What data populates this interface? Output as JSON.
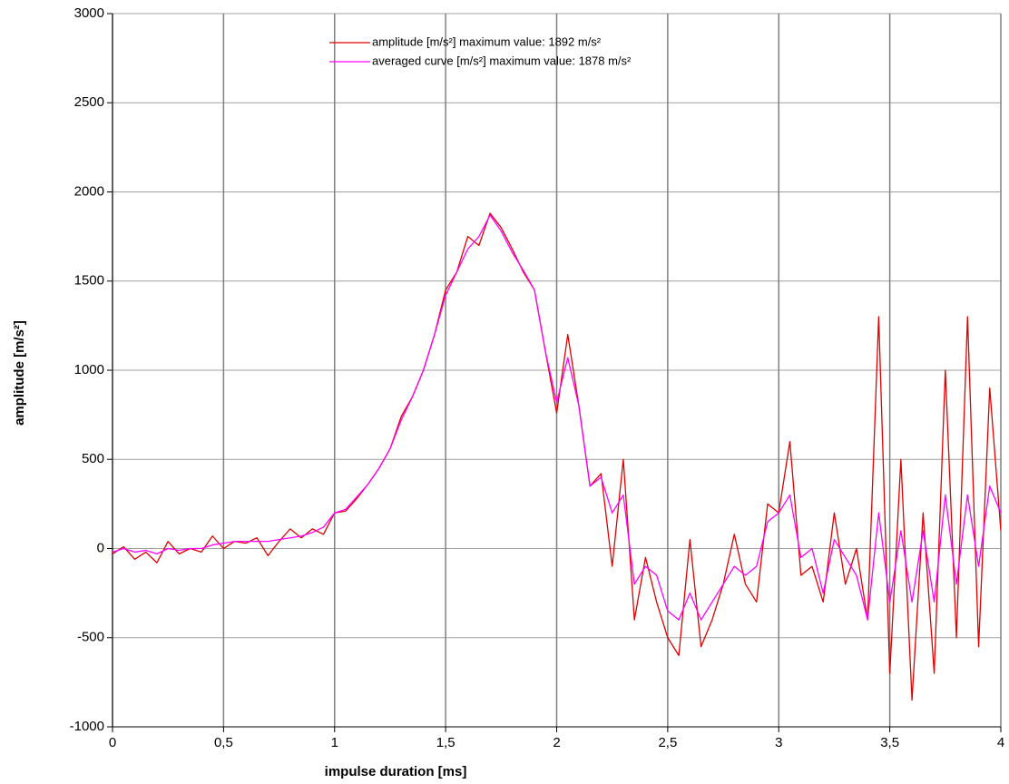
{
  "chart_data": {
    "type": "line",
    "x_label": "impulse duration [ms]",
    "y_label": "amplitude [m/s²]",
    "x": [
      0,
      0.05,
      0.1,
      0.15,
      0.2,
      0.25,
      0.3,
      0.35,
      0.4,
      0.45,
      0.5,
      0.55,
      0.6,
      0.65,
      0.7,
      0.75,
      0.8,
      0.85,
      0.9,
      0.95,
      1,
      1.05,
      1.1,
      1.15,
      1.2,
      1.25,
      1.3,
      1.35,
      1.4,
      1.45,
      1.5,
      1.55,
      1.6,
      1.65,
      1.7,
      1.75,
      1.8,
      1.85,
      1.9,
      1.95,
      2,
      2.05,
      2.1,
      2.15,
      2.2,
      2.25,
      2.3,
      2.35,
      2.4,
      2.45,
      2.5,
      2.55,
      2.6,
      2.65,
      2.7,
      2.75,
      2.8,
      2.85,
      2.9,
      2.95,
      3,
      3.05,
      3.1,
      3.15,
      3.2,
      3.25,
      3.3,
      3.35,
      3.4,
      3.45,
      3.5,
      3.55,
      3.6,
      3.65,
      3.7,
      3.75,
      3.8,
      3.85,
      3.9,
      3.95,
      4
    ],
    "series": [
      {
        "name": "amplitude [m/s²] maximum value: 1892 m/s²",
        "color": "#e00000",
        "values": [
          -30,
          10,
          -60,
          -20,
          -80,
          40,
          -30,
          0,
          -20,
          70,
          0,
          40,
          30,
          60,
          -40,
          40,
          110,
          60,
          110,
          80,
          200,
          210,
          280,
          360,
          450,
          560,
          740,
          850,
          1000,
          1200,
          1450,
          1550,
          1750,
          1700,
          1880,
          1800,
          1680,
          1550,
          1450,
          1100,
          760,
          1200,
          800,
          350,
          420,
          -100,
          500,
          -400,
          -50,
          -300,
          -500,
          -600,
          50,
          -550,
          -400,
          -200,
          80,
          -200,
          -300,
          250,
          200,
          600,
          -150,
          -100,
          -300,
          200,
          -200,
          0,
          -400,
          1300,
          -700,
          500,
          -850,
          200,
          -700,
          1000,
          -500,
          1300,
          -550,
          900,
          100
        ]
      },
      {
        "name": "averaged curve [m/s²] maximum value: 1878 m/s²",
        "color": "#ff00ff",
        "values": [
          -20,
          0,
          -20,
          -10,
          -30,
          0,
          -10,
          0,
          0,
          20,
          30,
          40,
          40,
          40,
          40,
          50,
          60,
          70,
          90,
          120,
          200,
          220,
          290,
          360,
          450,
          560,
          720,
          850,
          1000,
          1200,
          1420,
          1550,
          1680,
          1750,
          1870,
          1780,
          1660,
          1560,
          1450,
          1100,
          820,
          1070,
          800,
          350,
          400,
          200,
          300,
          -200,
          -100,
          -150,
          -350,
          -400,
          -250,
          -400,
          -300,
          -200,
          -100,
          -150,
          -100,
          150,
          200,
          300,
          -50,
          0,
          -250,
          50,
          -50,
          -150,
          -400,
          200,
          -300,
          100,
          -300,
          100,
          -300,
          300,
          -200,
          300,
          -100,
          350,
          200
        ]
      }
    ],
    "xlim": [
      0,
      4
    ],
    "xticks": [
      0,
      {
        "value": 0.5,
        "label": "0,5"
      },
      1,
      {
        "value": 1.5,
        "label": "1,5"
      },
      2,
      {
        "value": 2.5,
        "label": "2,5"
      },
      3,
      {
        "value": 3.5,
        "label": "3,5"
      },
      4
    ],
    "ylim": [
      -1000,
      3000
    ],
    "yticks": [
      -1000,
      -500,
      0,
      500,
      1000,
      1500,
      2000,
      2500,
      3000
    ],
    "grid": true,
    "legend": "top"
  }
}
